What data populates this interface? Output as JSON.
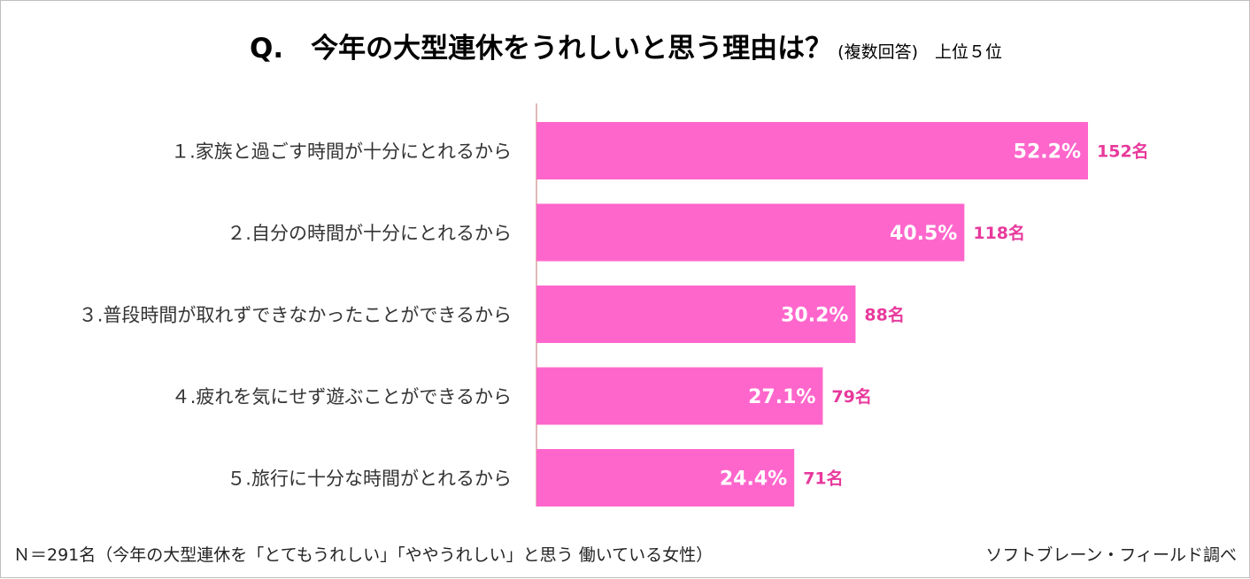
{
  "title": {
    "main": "Q.　今年の大型連休をうれしいと思う理由は？",
    "sub": "(複数回答)　上位５位"
  },
  "colors": {
    "bar": "#ff66cc",
    "count_text": "#e8399c",
    "axis": "#d9a0a0"
  },
  "chart_data": {
    "type": "bar",
    "orientation": "horizontal",
    "title": "Q.　今年の大型連休をうれしいと思う理由は？",
    "subtitle": "(複数回答)　上位５位",
    "categories": [
      "１.家族と過ごす時間が十分にとれるから",
      "２.自分の時間が十分にとれるから",
      "３.普段時間が取れずできなかったことができるから",
      "４.疲れを気にせず遊ぶことができるから",
      "５.旅行に十分な時間がとれるから"
    ],
    "values": [
      52.2,
      40.5,
      30.2,
      27.1,
      24.4
    ],
    "value_labels": [
      "52.2%",
      "40.5%",
      "30.2%",
      "27.1%",
      "24.4%"
    ],
    "counts": [
      "152名",
      "118名",
      "88名",
      "79名",
      "71名"
    ],
    "unit": "%",
    "grid": false,
    "legend": "none"
  },
  "footer": {
    "note": "Ｎ＝291名（今年の大型連休を「とてもうれしい」「ややうれしい」と思う 働いている女性）",
    "source": "ソフトブレーン・フィールド調べ"
  }
}
